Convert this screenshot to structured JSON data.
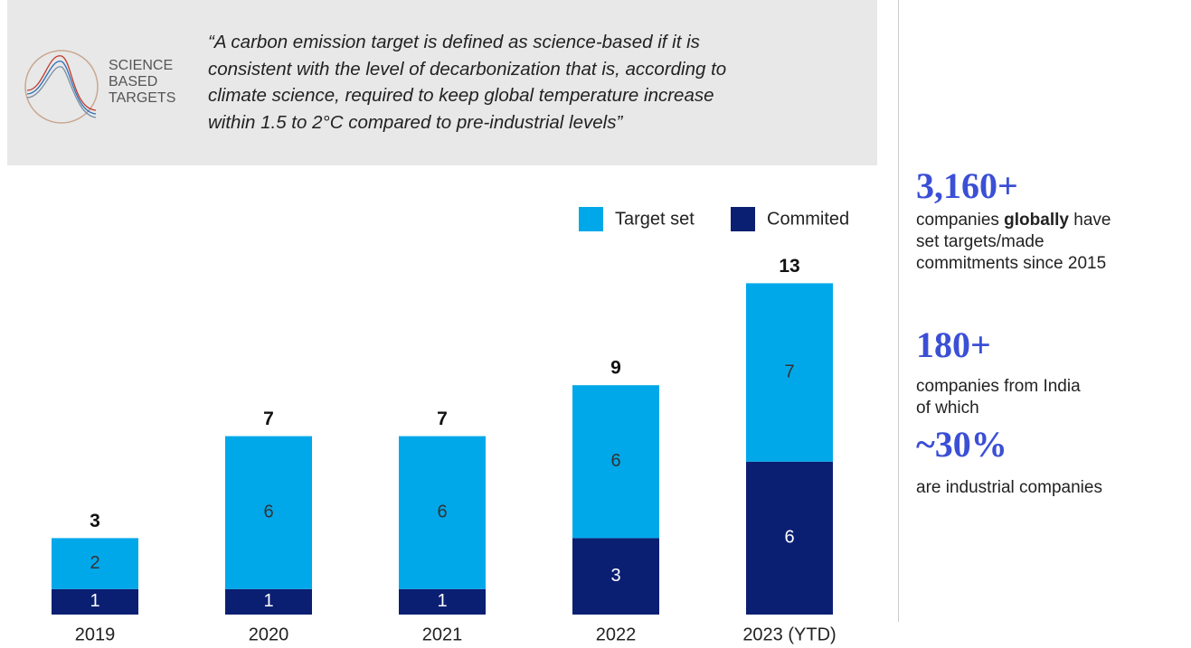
{
  "header": {
    "logo_lines": [
      "SCIENCE",
      "BASED",
      "TARGETS"
    ],
    "quote_lines": [
      "“A carbon emission target is defined as science-based if it is",
      "consistent with the level of decarbonization that is, according to",
      "climate science, required to keep global temperature increase",
      "within 1.5 to 2°C compared to pre-industrial levels”"
    ]
  },
  "chart_data": {
    "type": "stacked_bar",
    "categories": [
      "2019",
      "2020",
      "2021",
      "2022",
      "2023 (YTD)"
    ],
    "series": [
      {
        "name": "Commited",
        "color": "#0b1f72",
        "label_color": "#ffffff",
        "values": [
          1,
          1,
          1,
          3,
          6
        ]
      },
      {
        "name": "Target set",
        "color": "#00a8ea",
        "label_color": "#333333",
        "values": [
          2,
          6,
          6,
          6,
          7
        ]
      }
    ],
    "totals": [
      3,
      7,
      7,
      9,
      13
    ],
    "legend": "top-right"
  },
  "stats": [
    {
      "figure": "3,160+",
      "first_line": {
        "before": "companies ",
        "bold": "globally",
        "after": " have"
      },
      "lines": [
        "set targets/made",
        "commitments since 2015"
      ]
    },
    {
      "figure": "180+",
      "lines": [
        "companies from India",
        "of which"
      ]
    },
    {
      "figure": "~30%",
      "lines": [
        "are industrial companies"
      ]
    }
  ]
}
